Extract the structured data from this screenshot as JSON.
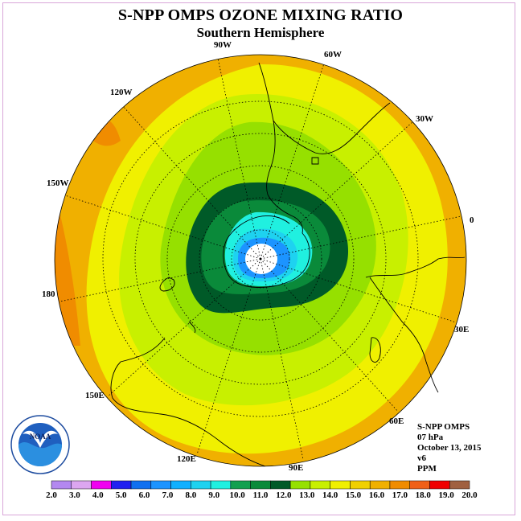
{
  "title": "S-NPP OMPS OZONE MIXING RATIO",
  "subtitle": "Southern Hemisphere",
  "logo_text": "NOAA",
  "longitude_labels": {
    "w90": "90W",
    "w60": "60W",
    "w30": "30W",
    "e0": "0",
    "e30": "30E",
    "e60": "60E",
    "e90": "90E",
    "e120": "120E",
    "e150": "150E",
    "lon180": "180",
    "w150": "150W",
    "w120": "120W"
  },
  "info": {
    "instrument": "S-NPP OMPS",
    "level": "07 hPa",
    "date": "October 13, 2015",
    "version": "v6",
    "units": "PPM"
  },
  "colorbar": {
    "colors": [
      "#b388f0",
      "#dca6f0",
      "#f000f0",
      "#2020f0",
      "#1070f0",
      "#1c94ff",
      "#10b0ff",
      "#1ed2f0",
      "#20f0e0",
      "#12a050",
      "#0a8a3a",
      "#005a28",
      "#96e000",
      "#c8f000",
      "#f0f000",
      "#f0d000",
      "#f0b000",
      "#f08c00",
      "#f06018",
      "#f00000",
      "#a06040"
    ],
    "labels": [
      "2.0",
      "3.0",
      "4.0",
      "5.0",
      "6.0",
      "7.0",
      "8.0",
      "9.0",
      "10.0",
      "11.0",
      "12.0",
      "13.0",
      "14.0",
      "15.0",
      "16.0",
      "17.0",
      "18.0",
      "19.0",
      "20.0"
    ]
  },
  "map_colors": {
    "c17": "#f08c00",
    "c16": "#f0b000",
    "c15": "#f0f000",
    "c14": "#c8f000",
    "c13": "#96e000",
    "c12": "#005a28",
    "c11": "#0a8a3a",
    "c10": "#20f0e0",
    "c9": "#1ed2f0",
    "c8": "#1c94ff",
    "hole": "#ffffff"
  }
}
